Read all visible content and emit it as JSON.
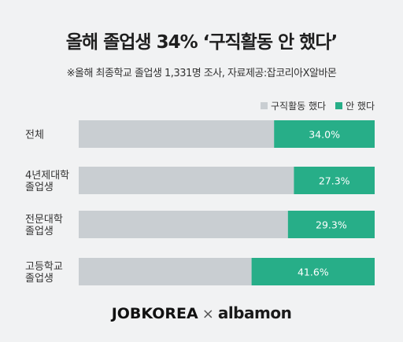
{
  "title": "올해 졸업생 34% ‘구직활동 안 했다’",
  "subtitle": "※올해 최종학교 졸업생 1,331명 조사, 자료제공:잡코리아X알바몬",
  "legend": {
    "items": [
      {
        "label": "구직활동 했다",
        "color": "#c9ced2"
      },
      {
        "label": "안 했다",
        "color": "#27ae88"
      }
    ]
  },
  "chart_data": {
    "type": "bar",
    "orientation": "horizontal",
    "stacked": true,
    "categories": [
      [
        "전체"
      ],
      [
        "4년제대학",
        "졸업생"
      ],
      [
        "전문대학",
        "졸업생"
      ],
      [
        "고등학교",
        "졸업생"
      ]
    ],
    "series": [
      {
        "name": "구직활동 했다",
        "values": [
          66.0,
          72.7,
          70.7,
          58.4
        ],
        "color": "#c9ced2"
      },
      {
        "name": "안 했다",
        "values": [
          34.0,
          27.3,
          29.3,
          41.6
        ],
        "color": "#27ae88"
      }
    ],
    "data_labels": [
      "34.0%",
      "27.3%",
      "29.3%",
      "41.6%"
    ],
    "xlim": [
      0,
      100
    ],
    "legend_position": "top-right",
    "grid": false
  },
  "footer": {
    "brand1": "JOBKOREA",
    "separator": "×",
    "brand2": "albamon"
  }
}
